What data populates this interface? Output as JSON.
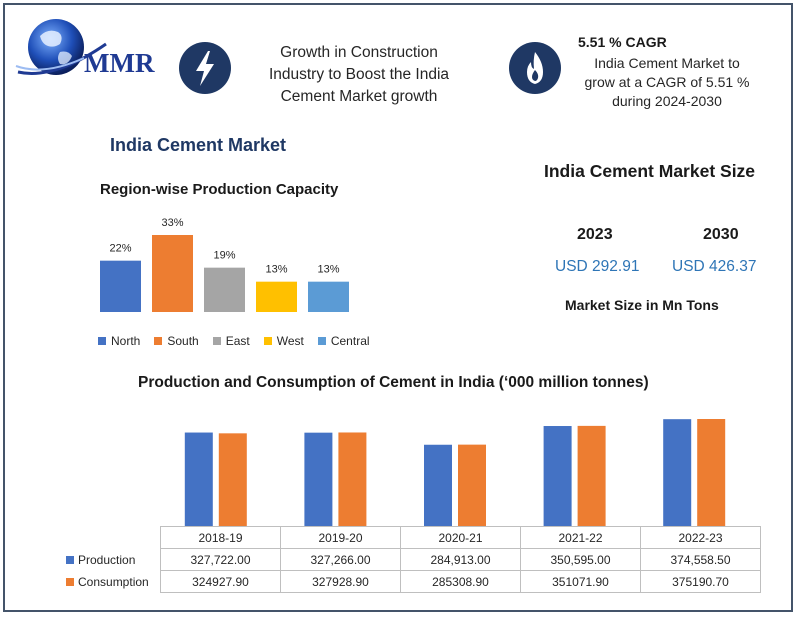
{
  "header": {
    "logo_text": "MMR",
    "banner_lines": [
      "Growth in Construction",
      "Industry to Boost the India",
      "Cement Market growth"
    ],
    "cagr_title": "5.51 % CAGR",
    "cagr_lines": [
      "India Cement Market to",
      "grow at a CAGR of 5.51 %",
      "during  2024-2030"
    ]
  },
  "market_title": "India Cement Market",
  "market_size": {
    "title": "India Cement Market Size",
    "year_start": "2023",
    "year_end": "2030",
    "value_start": "USD 292.91",
    "value_end": "USD 426.37",
    "unit_label": "Market Size in Mn Tons"
  },
  "chart_data": [
    {
      "type": "bar",
      "title": "Region-wise Production Capacity",
      "categories": [
        "North",
        "South",
        "East",
        "West",
        "Central"
      ],
      "values": [
        22,
        33,
        19,
        13,
        13
      ],
      "value_labels": [
        "22%",
        "33%",
        "19%",
        "13%",
        "13%"
      ],
      "colors": [
        "#4472c4",
        "#ed7d31",
        "#a5a5a5",
        "#ffc000",
        "#5b9bd5"
      ],
      "ylim": [
        0,
        33
      ],
      "legend": "bottom",
      "grid": false
    },
    {
      "type": "bar",
      "title": "Production and Consumption of Cement in India (‘000 million tonnes)",
      "categories": [
        "2018-19",
        "2019-20",
        "2020-21",
        "2021-22",
        "2022-23"
      ],
      "series": [
        {
          "name": "Production",
          "values": [
            327722.0,
            327266.0,
            284913.0,
            350595.0,
            374558.5
          ],
          "labels": [
            "327,722.00",
            "327,266.00",
            "284,913.00",
            "350,595.00",
            "374,558.50"
          ],
          "color": "#4472c4"
        },
        {
          "name": "Consumption",
          "values": [
            324927.9,
            327928.9,
            285308.9,
            351071.9,
            375190.7
          ],
          "labels": [
            "324927.90",
            "327928.90",
            "285308.90",
            "351071.90",
            "375190.70"
          ],
          "color": "#ed7d31"
        }
      ],
      "legend": "data-table",
      "grid": false
    }
  ]
}
